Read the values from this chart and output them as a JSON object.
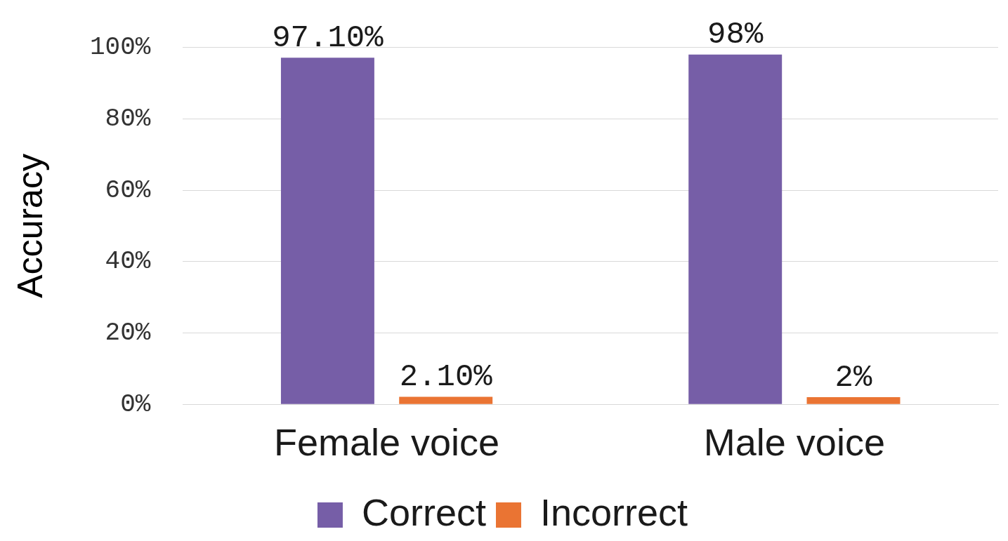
{
  "chart_data": {
    "type": "bar",
    "ylabel": "Accuracy",
    "categories": [
      "Female voice",
      "Male voice"
    ],
    "series": [
      {
        "name": "Correct",
        "color": "#765ea7",
        "values": [
          97.1,
          98
        ],
        "value_labels": [
          "97.10%",
          "98%"
        ]
      },
      {
        "name": "Incorrect",
        "color": "#ea7433",
        "values": [
          2.1,
          2
        ],
        "value_labels": [
          "2.10%",
          "2%"
        ]
      }
    ],
    "ylim": [
      0,
      100
    ],
    "yticks": [
      {
        "value": 0,
        "label": "0%"
      },
      {
        "value": 20,
        "label": "20%"
      },
      {
        "value": 40,
        "label": "40%"
      },
      {
        "value": 60,
        "label": "60%"
      },
      {
        "value": 80,
        "label": "80%"
      },
      {
        "value": 100,
        "label": "100%"
      }
    ],
    "grid": "y",
    "legend": "bottom"
  }
}
